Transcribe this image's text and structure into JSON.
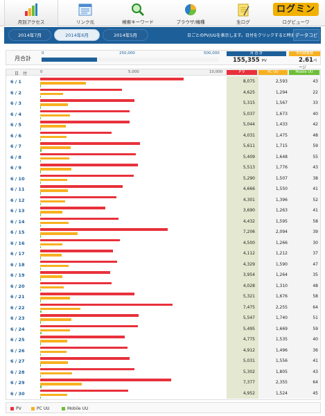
{
  "nav": [
    {
      "label": "月別アクセス",
      "icon": "bar-chart-icon",
      "active": true
    },
    {
      "label": "リンク元",
      "icon": "window-list-icon",
      "active": false
    },
    {
      "label": "検索キーワード",
      "icon": "magnifier-icon",
      "active": false
    },
    {
      "label": "ブラウザ/機種",
      "icon": "pie-chart-icon",
      "active": false
    },
    {
      "label": "生ログ",
      "icon": "notepad-icon",
      "active": false
    },
    {
      "label": "ログビューワ",
      "icon": "logo-icon",
      "active": false,
      "logo_text": "ログミン"
    }
  ],
  "months": [
    "2014年7月",
    "2014年6月",
    "2014年5月"
  ],
  "active_month_index": 1,
  "info_text": "日ごとのPV/UUを表示します。日付をクリックすると時系列で表示します",
  "copy_button": "データコピー",
  "totals": {
    "label": "月合計",
    "ticks": [
      "0",
      "250,000",
      "500,000"
    ],
    "pv_header": "月 合 計",
    "pv": "155,355",
    "pv_unit": "PV",
    "pv_value": 155355,
    "scale_max": 500000,
    "ppv_header": "平均閲覧数",
    "ppv": "2.61",
    "ppv_unit": "ページ"
  },
  "table": {
    "date_header": "日　付",
    "scale_ticks": [
      "0",
      "5,000",
      "10,000"
    ],
    "scale_max": 10000,
    "col_pv": "P V",
    "col_pc": "PC UU",
    "col_mobile": "Mobile UU"
  },
  "colors": {
    "pv": "#e8313b",
    "pc": "#f7b020",
    "mobile": "#6cbf35",
    "accent": "#1c5f99"
  },
  "rows": [
    {
      "date": "6 / 1",
      "pv": 8075,
      "pc": 2593,
      "mobile": 43
    },
    {
      "date": "6 / 2",
      "pv": 4625,
      "pc": 1294,
      "mobile": 22
    },
    {
      "date": "6 / 3",
      "pv": 5315,
      "pc": 1567,
      "mobile": 33
    },
    {
      "date": "6 / 4",
      "pv": 5037,
      "pc": 1673,
      "mobile": 40
    },
    {
      "date": "6 / 5",
      "pv": 5044,
      "pc": 1433,
      "mobile": 42
    },
    {
      "date": "6 / 6",
      "pv": 4031,
      "pc": 1475,
      "mobile": 48
    },
    {
      "date": "6 / 7",
      "pv": 5611,
      "pc": 1715,
      "mobile": 59
    },
    {
      "date": "6 / 8",
      "pv": 5409,
      "pc": 1648,
      "mobile": 55
    },
    {
      "date": "6 / 9",
      "pv": 5513,
      "pc": 1776,
      "mobile": 43
    },
    {
      "date": "6 / 10",
      "pv": 5290,
      "pc": 1507,
      "mobile": 38
    },
    {
      "date": "6 / 11",
      "pv": 4666,
      "pc": 1550,
      "mobile": 41
    },
    {
      "date": "6 / 12",
      "pv": 4301,
      "pc": 1396,
      "mobile": 52
    },
    {
      "date": "6 / 13",
      "pv": 3690,
      "pc": 1263,
      "mobile": 41
    },
    {
      "date": "6 / 14",
      "pv": 4432,
      "pc": 1595,
      "mobile": 58
    },
    {
      "date": "6 / 15",
      "pv": 7206,
      "pc": 2094,
      "mobile": 39
    },
    {
      "date": "6 / 16",
      "pv": 4500,
      "pc": 1266,
      "mobile": 30
    },
    {
      "date": "6 / 17",
      "pv": 4112,
      "pc": 1212,
      "mobile": 37
    },
    {
      "date": "6 / 18",
      "pv": 4329,
      "pc": 1590,
      "mobile": 47
    },
    {
      "date": "6 / 19",
      "pv": 3954,
      "pc": 1264,
      "mobile": 35
    },
    {
      "date": "6 / 20",
      "pv": 4028,
      "pc": 1310,
      "mobile": 48
    },
    {
      "date": "6 / 21",
      "pv": 5321,
      "pc": 1676,
      "mobile": 58
    },
    {
      "date": "6 / 22",
      "pv": 7475,
      "pc": 2255,
      "mobile": 64
    },
    {
      "date": "6 / 23",
      "pv": 5547,
      "pc": 1740,
      "mobile": 51
    },
    {
      "date": "6 / 24",
      "pv": 5495,
      "pc": 1669,
      "mobile": 59
    },
    {
      "date": "6 / 25",
      "pv": 4775,
      "pc": 1535,
      "mobile": 40
    },
    {
      "date": "6 / 26",
      "pv": 4912,
      "pc": 1496,
      "mobile": 36
    },
    {
      "date": "6 / 27",
      "pv": 5031,
      "pc": 1556,
      "mobile": 41
    },
    {
      "date": "6 / 28",
      "pv": 5302,
      "pc": 1805,
      "mobile": 43
    },
    {
      "date": "6 / 29",
      "pv": 7377,
      "pc": 2355,
      "mobile": 64
    },
    {
      "date": "6 / 30",
      "pv": 4952,
      "pc": 1524,
      "mobile": 45
    }
  ],
  "legend": [
    {
      "label": "PV",
      "color": "#e8313b"
    },
    {
      "label": "PC UU",
      "color": "#f7b020"
    },
    {
      "label": "Mobile UU",
      "color": "#6cbf35"
    }
  ]
}
